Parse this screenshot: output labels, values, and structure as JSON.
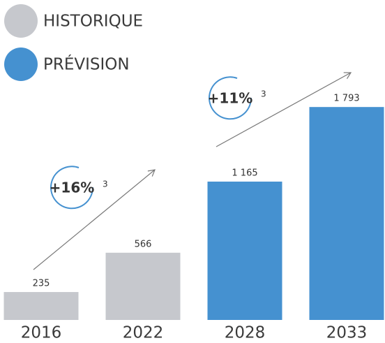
{
  "chart_data": {
    "type": "bar",
    "categories": [
      "2016",
      "2022",
      "2028",
      "2033"
    ],
    "series": [
      {
        "name": "HISTORIQUE",
        "color": "#c6c8cd",
        "values": [
          235,
          566,
          null,
          null
        ],
        "value_labels": [
          "235",
          "566",
          null,
          null
        ]
      },
      {
        "name": "PRÉVISION",
        "color": "#4591d0",
        "values": [
          null,
          null,
          1165,
          1793
        ],
        "value_labels": [
          null,
          null,
          "1 165",
          "1 793"
        ]
      }
    ],
    "ylim": [
      0,
      2000
    ],
    "annotations": [
      {
        "text": "+16%",
        "superscript": "3"
      },
      {
        "text": "+11%",
        "superscript": "3"
      }
    ]
  }
}
